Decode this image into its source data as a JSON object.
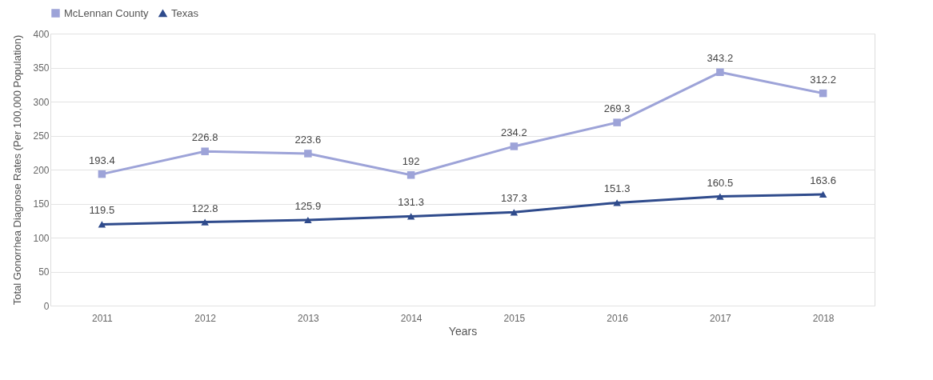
{
  "chart_data": {
    "type": "line",
    "xlabel": "Years",
    "ylabel": "Total Gonorrhea Diagnose Rates (Per 100,000 Population)",
    "categories": [
      "2011",
      "2012",
      "2013",
      "2014",
      "2015",
      "2016",
      "2017",
      "2018"
    ],
    "series": [
      {
        "name": "McLennan County",
        "color": "#9da3d8",
        "marker": "square",
        "values": [
          193.4,
          226.8,
          223.6,
          192,
          234.2,
          269.3,
          343.2,
          312.2
        ]
      },
      {
        "name": "Texas",
        "color": "#2f4b8c",
        "marker": "triangle",
        "values": [
          119.5,
          122.8,
          125.9,
          131.3,
          137.3,
          151.3,
          160.5,
          163.6
        ]
      }
    ],
    "ylim": [
      0,
      400
    ],
    "yticks": [
      0,
      50,
      100,
      150,
      200,
      250,
      300,
      350,
      400
    ],
    "grid": "y",
    "legend": "top",
    "data_labels": true,
    "line_style": "solid"
  }
}
